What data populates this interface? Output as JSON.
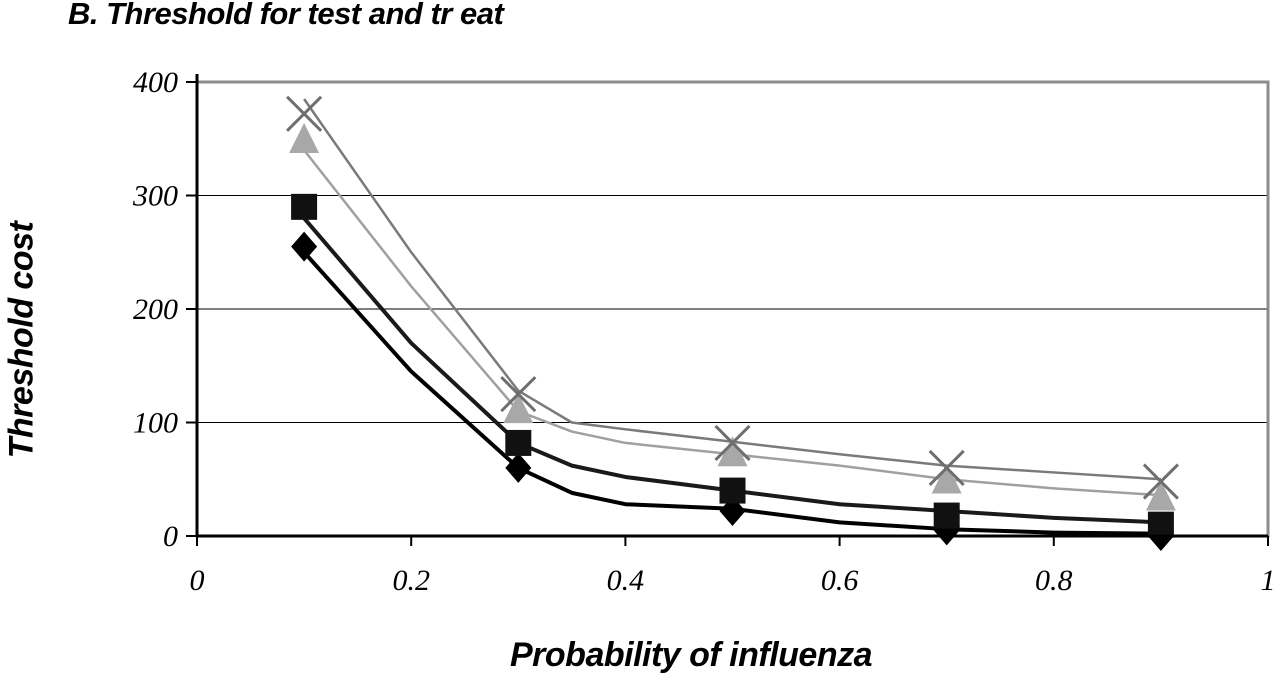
{
  "chart_data": {
    "type": "line",
    "title": "B. Threshold for test and tr eat",
    "xlabel": "Probability of influenza",
    "ylabel": "Threshold cost",
    "xlim": [
      0,
      1
    ],
    "ylim": [
      0,
      400
    ],
    "xticks": [
      "0",
      "0.2",
      "0.4",
      "0.6",
      "0.8",
      "1"
    ],
    "yticks": [
      "0",
      "100",
      "200",
      "300",
      "400"
    ],
    "grid": "horizontal",
    "legend": "none",
    "x": [
      0.1,
      0.3,
      0.5,
      0.7,
      0.9
    ],
    "series": [
      {
        "marker": "diamond",
        "color": "#000000",
        "values": [
          255,
          60,
          22,
          5,
          0
        ],
        "line": [
          [
            0.1,
            250
          ],
          [
            0.2,
            145
          ],
          [
            0.3,
            60
          ],
          [
            0.35,
            38
          ],
          [
            0.4,
            28
          ],
          [
            0.5,
            24
          ],
          [
            0.6,
            12
          ],
          [
            0.7,
            6
          ],
          [
            0.8,
            3
          ],
          [
            0.9,
            2
          ]
        ]
      },
      {
        "marker": "square",
        "color": "#1a1a1a",
        "values": [
          290,
          82,
          40,
          18,
          10
        ],
        "line": [
          [
            0.1,
            280
          ],
          [
            0.2,
            170
          ],
          [
            0.3,
            82
          ],
          [
            0.35,
            62
          ],
          [
            0.4,
            52
          ],
          [
            0.5,
            40
          ],
          [
            0.6,
            28
          ],
          [
            0.7,
            22
          ],
          [
            0.8,
            16
          ],
          [
            0.9,
            12
          ]
        ]
      },
      {
        "marker": "triangle",
        "color": "#a0a0a0",
        "values": [
          348,
          110,
          72,
          48,
          33
        ],
        "line": [
          [
            0.1,
            340
          ],
          [
            0.2,
            220
          ],
          [
            0.3,
            110
          ],
          [
            0.35,
            92
          ],
          [
            0.4,
            82
          ],
          [
            0.5,
            72
          ],
          [
            0.6,
            62
          ],
          [
            0.7,
            50
          ],
          [
            0.8,
            42
          ],
          [
            0.9,
            36
          ]
        ]
      },
      {
        "marker": "x",
        "color": "#7a7a7a",
        "values": [
          372,
          125,
          82,
          60,
          48
        ],
        "line": [
          [
            0.1,
            385
          ],
          [
            0.2,
            250
          ],
          [
            0.3,
            128
          ],
          [
            0.35,
            100
          ],
          [
            0.4,
            94
          ],
          [
            0.5,
            83
          ],
          [
            0.6,
            72
          ],
          [
            0.7,
            62
          ],
          [
            0.8,
            56
          ],
          [
            0.9,
            50
          ]
        ]
      }
    ]
  }
}
